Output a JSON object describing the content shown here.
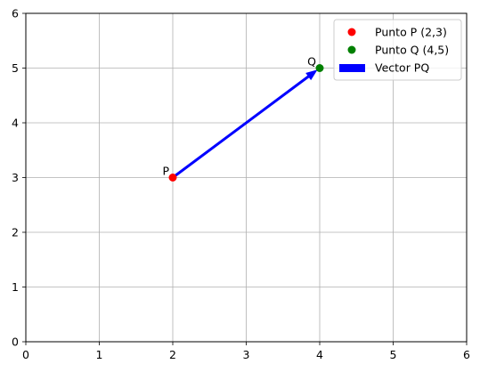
{
  "chart_data": {
    "type": "scatter",
    "title": "",
    "xlabel": "",
    "ylabel": "",
    "xlim": [
      0,
      6
    ],
    "ylim": [
      0,
      6
    ],
    "xticks": [
      0,
      1,
      2,
      3,
      4,
      5,
      6
    ],
    "yticks": [
      0,
      1,
      2,
      3,
      4,
      5,
      6
    ],
    "grid": true,
    "legend_position": "top-right",
    "points": [
      {
        "label": "P",
        "x": 2,
        "y": 3,
        "color": "#ff0000",
        "legend": "Punto P (2,3)"
      },
      {
        "label": "Q",
        "x": 4,
        "y": 5,
        "color": "#008000",
        "legend": "Punto Q (4,5)"
      }
    ],
    "vectors": [
      {
        "from": [
          2,
          3
        ],
        "to": [
          4,
          5
        ],
        "color": "#0000ff",
        "legend": "Vector PQ"
      }
    ]
  }
}
